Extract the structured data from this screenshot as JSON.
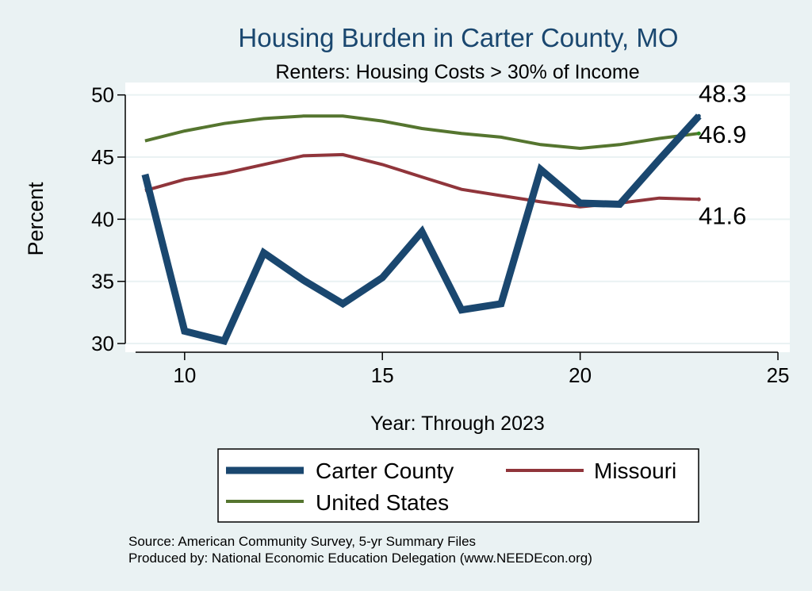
{
  "chart_data": {
    "type": "line",
    "title": "Housing Burden in Carter County, MO",
    "subtitle": "Renters: Housing Costs > 30% of Income",
    "xlabel": "Year: Through 2023",
    "ylabel": "Percent",
    "xlim": [
      8.5,
      25.3
    ],
    "ylim": [
      29.3,
      51.0
    ],
    "xticks": [
      10,
      15,
      20,
      25
    ],
    "yticks": [
      30,
      35,
      40,
      45,
      50
    ],
    "x": [
      9,
      10,
      11,
      12,
      13,
      14,
      15,
      16,
      17,
      18,
      19,
      20,
      21,
      22,
      23
    ],
    "series": [
      {
        "name": "Carter County",
        "color": "#1a476f",
        "values": [
          43.6,
          31.0,
          30.2,
          37.3,
          35.1,
          33.2,
          35.3,
          39.0,
          32.7,
          33.2,
          44.0,
          41.3,
          41.2,
          44.8,
          48.3
        ],
        "end_label": "48.3"
      },
      {
        "name": "Missouri",
        "color": "#90353b",
        "values": [
          42.3,
          43.2,
          43.7,
          44.4,
          45.1,
          45.2,
          44.4,
          43.4,
          42.4,
          41.9,
          41.4,
          41.0,
          41.3,
          41.7,
          41.6
        ],
        "end_label": "41.6"
      },
      {
        "name": "United States",
        "color": "#55752f",
        "values": [
          46.3,
          47.1,
          47.7,
          48.1,
          48.3,
          48.3,
          47.9,
          47.3,
          46.9,
          46.6,
          46.0,
          45.7,
          46.0,
          46.5,
          46.9
        ],
        "end_label": "46.9"
      }
    ],
    "legend": {
      "position": "bottom",
      "entries": [
        "Carter County",
        "Missouri",
        "United States"
      ]
    },
    "notes": [
      "Source: American Community Survey, 5-yr Summary Files",
      "Produced by: National Economic Education Delegation (www.NEEDEcon.org)"
    ],
    "grid": true
  }
}
